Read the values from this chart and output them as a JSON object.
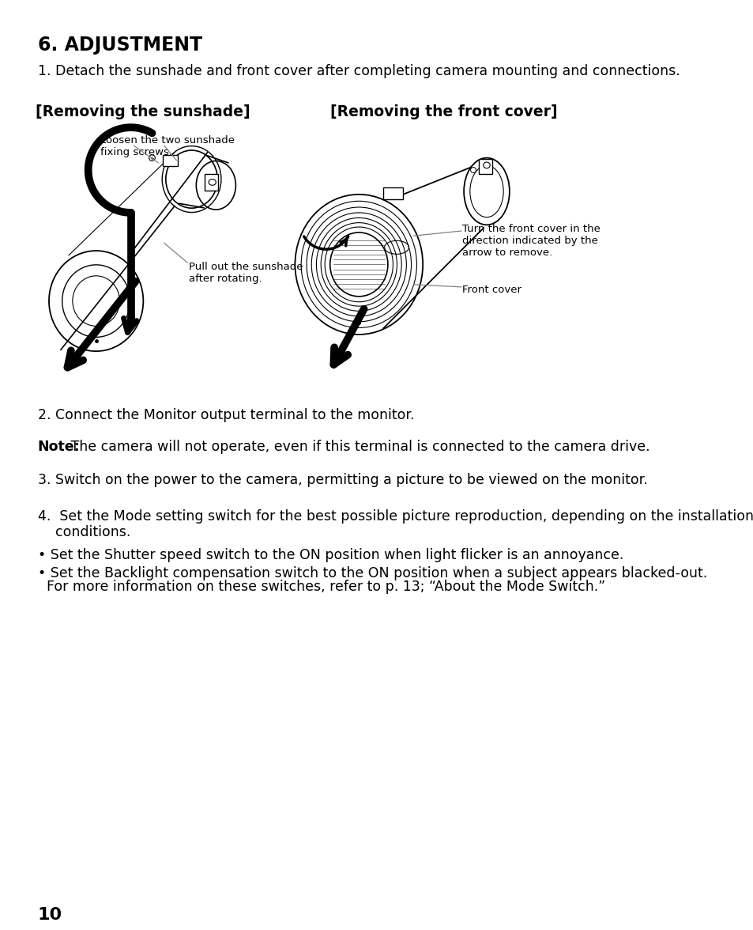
{
  "title": "6. ADJUSTMENT",
  "line1": "1. Detach the sunshade and front cover after completing camera mounting and connections.",
  "sunshade_header": "[Removing the sunshade]",
  "front_cover_header": "[Removing the front cover]",
  "sunshade_label1": "Loosen the two sunshade\nfixing screws.",
  "sunshade_label2": "Pull out the sunshade\nafter rotating.",
  "front_cover_label1": "Turn the front cover in the\ndirection indicated by the\narrow to remove.",
  "front_cover_label2": "Front cover",
  "line2": "2. Connect the Monitor output terminal to the monitor.",
  "note_bold": "Note:",
  "note_rest": " The camera will not operate, even if this terminal is connected to the camera drive.",
  "line3": "3. Switch on the power to the camera, permitting a picture to be viewed on the monitor.",
  "line4a": "4.  Set the Mode setting switch for the best possible picture reproduction, depending on the installation",
  "line4b": "    conditions.",
  "bullet1": "• Set the Shutter speed switch to the ON position when light flicker is an annoyance.",
  "bullet2a": "• Set the Backlight compensation switch to the ON position when a subject appears blacked-out.",
  "bullet2b": "  For more information on these switches, refer to p. 13; “About the Mode Switch.”",
  "page_number": "10",
  "bg_color": "#ffffff",
  "text_color": "#000000"
}
